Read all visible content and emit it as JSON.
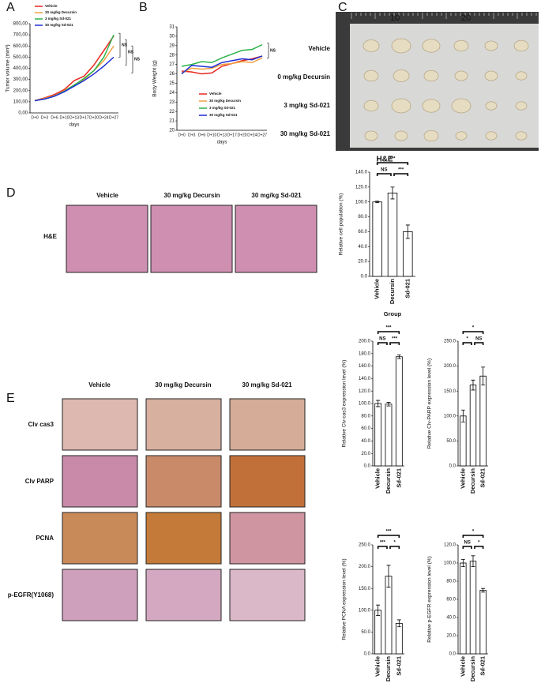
{
  "figure": {
    "panels": [
      "A",
      "B",
      "C",
      "D",
      "E"
    ],
    "photo_rows": [
      "Vehicle",
      "0 mg/kg Decursin",
      "3 mg/kg Sd-021",
      "30 mg/kg Sd-021"
    ],
    "ruler_marks": [
      "10",
      "20"
    ],
    "d_columns": [
      "Vehicle",
      "30 mg/kg Decursin",
      "30 mg/kg Sd-021"
    ],
    "d_rows": [
      "H&E"
    ],
    "e_columns": [
      "Vehicle",
      "30 mg/kg Decursin",
      "30 mg/kg Sd-021"
    ],
    "e_rows": [
      "Clv cas3",
      "Clv PARP",
      "PCNA",
      "p-EGFR(Y1068)"
    ]
  },
  "chart_data": [
    {
      "type": "line",
      "ylabel": "Tumor volume (mm³)",
      "xlabel": "days",
      "categories": [
        "D+0",
        "D+3",
        "D+6",
        "D+10",
        "D+13",
        "D+17",
        "D+20",
        "D+24",
        "D+27"
      ],
      "ylim": [
        0,
        800
      ],
      "yticks": [
        {
          "value": 0,
          "label": "0,00"
        },
        {
          "value": 100,
          "label": "100,00"
        },
        {
          "value": 200,
          "label": "200,00"
        },
        {
          "value": 300,
          "label": "300,00"
        },
        {
          "value": 400,
          "label": "400,00"
        },
        {
          "value": 500,
          "label": "500,00"
        },
        {
          "value": 600,
          "label": "600,00"
        },
        {
          "value": 700,
          "label": "700,00"
        },
        {
          "value": 800,
          "label": "800,00"
        }
      ],
      "series": [
        {
          "name": "Vehicle",
          "color": "#e8261f",
          "values": [
            110,
            135,
            165,
            210,
            290,
            330,
            430,
            560,
            690
          ]
        },
        {
          "name": "30 mg/kg Decursin",
          "color": "#f0a040",
          "values": [
            110,
            130,
            155,
            200,
            250,
            300,
            380,
            470,
            600
          ]
        },
        {
          "name": "3 mg/kg Sd-021",
          "color": "#2db34a",
          "values": [
            110,
            125,
            150,
            195,
            250,
            310,
            380,
            500,
            700
          ]
        },
        {
          "name": "30 mg/kg Sd-021",
          "color": "#1f2fd6",
          "values": [
            110,
            125,
            150,
            190,
            240,
            290,
            350,
            420,
            500
          ]
        }
      ],
      "annotations": [
        "NS",
        "NS",
        "NS"
      ]
    },
    {
      "type": "line",
      "ylabel": "Body Weight (g)",
      "xlabel": "days",
      "categories": [
        "D+0",
        "D+3",
        "D+6",
        "D+10",
        "D+13",
        "D+17",
        "D+20",
        "D+24",
        "D+27"
      ],
      "ylim": [
        20,
        31
      ],
      "yticks": [
        20,
        21,
        22,
        23,
        24,
        25,
        26,
        27,
        28,
        29,
        30,
        31
      ],
      "series": [
        {
          "name": "Vehicle",
          "color": "#e8261f",
          "values": [
            26.3,
            26.2,
            26.0,
            26.1,
            26.8,
            27.1,
            27.4,
            27.6,
            27.9
          ]
        },
        {
          "name": "30 mg/kg Decursin",
          "color": "#f0a040",
          "values": [
            26.1,
            26.6,
            26.5,
            26.6,
            27.0,
            27.1,
            27.3,
            27.2,
            27.7
          ]
        },
        {
          "name": "3 mg/kg Sd-021",
          "color": "#2db34a",
          "values": [
            26.8,
            27.0,
            27.3,
            27.2,
            27.7,
            28.1,
            28.5,
            28.6,
            29.1
          ]
        },
        {
          "name": "30 mg/kg Sd-021",
          "color": "#1f2fd6",
          "values": [
            26.0,
            26.9,
            26.8,
            26.7,
            27.2,
            27.4,
            27.6,
            27.5,
            27.9
          ]
        }
      ],
      "annotations": [
        "NS"
      ]
    },
    {
      "type": "bar",
      "title": "H&E",
      "ylabel": "Relative cell population (%)",
      "xlabel": "Group",
      "categories": [
        "Vehicle",
        "Decursin",
        "Sd-021"
      ],
      "values": [
        100,
        112,
        60
      ],
      "errors": [
        1,
        8,
        9
      ],
      "ylim": [
        0,
        140
      ],
      "yticks": [
        {
          "value": 0,
          "label": "0.0"
        },
        {
          "value": 20,
          "label": "20.0"
        },
        {
          "value": 40,
          "label": "40.0"
        },
        {
          "value": 60,
          "label": "60.0"
        },
        {
          "value": 80,
          "label": "80.0"
        },
        {
          "value": 100,
          "label": "100.0"
        },
        {
          "value": 120,
          "label": "120.0"
        },
        {
          "value": 140,
          "label": "140.0"
        }
      ],
      "annotations": [
        "***",
        "NS",
        "***"
      ]
    },
    {
      "type": "bar",
      "ylabel": "Relative Clv-cas3 expression level (%)",
      "categories": [
        "Vehicle",
        "Decursin",
        "Sd-021"
      ],
      "values": [
        100,
        99,
        175
      ],
      "errors": [
        5,
        3,
        3
      ],
      "ylim": [
        0,
        200
      ],
      "yticks": [
        {
          "value": 0,
          "label": "0.0"
        },
        {
          "value": 20,
          "label": "20.0"
        },
        {
          "value": 40,
          "label": "40.0"
        },
        {
          "value": 60,
          "label": "60.0"
        },
        {
          "value": 80,
          "label": "80.0"
        },
        {
          "value": 100,
          "label": "100.0"
        },
        {
          "value": 120,
          "label": "120.0"
        },
        {
          "value": 140,
          "label": "140.0"
        },
        {
          "value": 160,
          "label": "160.0"
        },
        {
          "value": 180,
          "label": "180.0"
        },
        {
          "value": 200,
          "label": "200.0"
        }
      ],
      "annotations": [
        "***",
        "NS",
        "***"
      ]
    },
    {
      "type": "bar",
      "ylabel": "Relative Clv-PARP expression level (%)",
      "categories": [
        "Vehicle",
        "Decursin",
        "Sd-021"
      ],
      "values": [
        100,
        162,
        180
      ],
      "errors": [
        12,
        10,
        18
      ],
      "ylim": [
        0,
        250
      ],
      "yticks": [
        {
          "value": 0,
          "label": "0.0"
        },
        {
          "value": 50,
          "label": "50.0"
        },
        {
          "value": 100,
          "label": "100.0"
        },
        {
          "value": 150,
          "label": "150.0"
        },
        {
          "value": 200,
          "label": "200.0"
        },
        {
          "value": 250,
          "label": "250.0"
        }
      ],
      "annotations": [
        "*",
        "*",
        "NS"
      ]
    },
    {
      "type": "bar",
      "ylabel": "Relative PCNA expression level (%)",
      "categories": [
        "Vehicle",
        "Decursin",
        "Sd-021"
      ],
      "values": [
        100,
        178,
        70
      ],
      "errors": [
        12,
        25,
        8
      ],
      "ylim": [
        0,
        250
      ],
      "yticks": [
        {
          "value": 0,
          "label": "0.0"
        },
        {
          "value": 50,
          "label": "50.0"
        },
        {
          "value": 100,
          "label": "100.0"
        },
        {
          "value": 150,
          "label": "150.0"
        },
        {
          "value": 200,
          "label": "200.0"
        },
        {
          "value": 250,
          "label": "250.0"
        }
      ],
      "annotations": [
        "***",
        "***",
        "*"
      ]
    },
    {
      "type": "bar",
      "ylabel": "Relative p-EGFR expression level (%)",
      "categories": [
        "Vehicle",
        "Decursin",
        "Sd-021"
      ],
      "values": [
        100,
        102,
        70
      ],
      "errors": [
        4,
        6,
        2
      ],
      "ylim": [
        0,
        120
      ],
      "yticks": [
        {
          "value": 0,
          "label": "0.0"
        },
        {
          "value": 20,
          "label": "20.0"
        },
        {
          "value": 40,
          "label": "40.0"
        },
        {
          "value": 60,
          "label": "60.0"
        },
        {
          "value": 80,
          "label": "80.0"
        },
        {
          "value": 100,
          "label": "100.0"
        },
        {
          "value": 120,
          "label": "120.0"
        }
      ],
      "annotations": [
        "*",
        "NS",
        "*"
      ]
    }
  ]
}
